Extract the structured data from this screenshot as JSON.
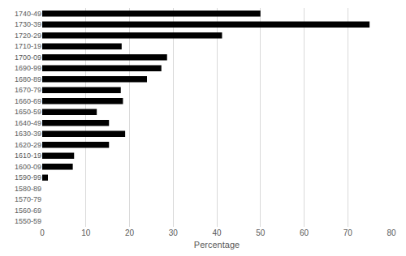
{
  "chart_data": {
    "type": "bar",
    "orientation": "horizontal",
    "categories": [
      "1550-59",
      "1560-69",
      "1570-79",
      "1580-89",
      "1590-99",
      "1600-09",
      "1610-19",
      "1620-29",
      "1630-39",
      "1640-49",
      "1650-59",
      "1660-69",
      "1670-79",
      "1680-89",
      "1690-99",
      "1700-09",
      "1710-19",
      "1720-29",
      "1730-39",
      "1740-49"
    ],
    "values": [
      0,
      0,
      0,
      0,
      1.3,
      7,
      7.3,
      15.3,
      19,
      15.3,
      12.5,
      18.5,
      18,
      24,
      27.3,
      28.6,
      18.2,
      41.2,
      75,
      50
    ],
    "color": "#000000",
    "x_label": "Percentage",
    "xlim": [
      0,
      80
    ],
    "xticks": [
      0,
      10,
      20,
      30,
      40,
      50,
      60,
      70,
      80
    ],
    "grid": true
  }
}
